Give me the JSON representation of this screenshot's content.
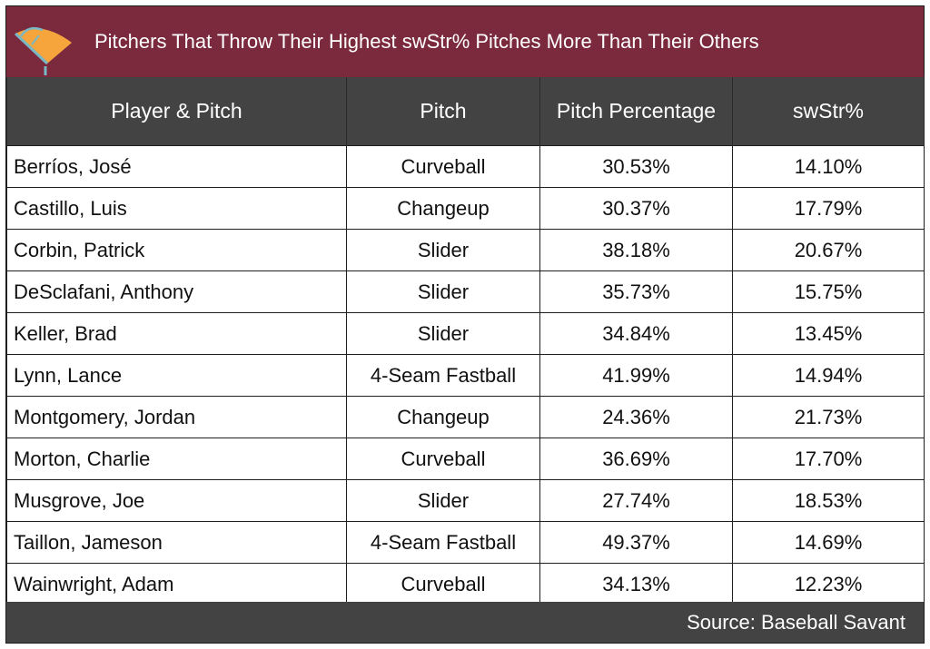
{
  "title": "Pitchers That Throw Their Highest swStr% Pitches More Than Their Others",
  "logo": {
    "icon": "baseball-field-icon",
    "colors": [
      "#f6a53c",
      "#79b7c5"
    ]
  },
  "columns": [
    "Player & Pitch",
    "Pitch",
    "Pitch Percentage",
    "swStr%"
  ],
  "rows": [
    {
      "player": "Berríos, José",
      "pitch": "Curveball",
      "pct": "30.53%",
      "swstr": "14.10%"
    },
    {
      "player": "Castillo, Luis",
      "pitch": "Changeup",
      "pct": "30.37%",
      "swstr": "17.79%"
    },
    {
      "player": "Corbin, Patrick",
      "pitch": "Slider",
      "pct": "38.18%",
      "swstr": "20.67%"
    },
    {
      "player": "DeSclafani, Anthony",
      "pitch": "Slider",
      "pct": "35.73%",
      "swstr": "15.75%"
    },
    {
      "player": "Keller, Brad",
      "pitch": "Slider",
      "pct": "34.84%",
      "swstr": "13.45%"
    },
    {
      "player": "Lynn, Lance",
      "pitch": "4-Seam Fastball",
      "pct": "41.99%",
      "swstr": "14.94%"
    },
    {
      "player": "Montgomery, Jordan",
      "pitch": "Changeup",
      "pct": "24.36%",
      "swstr": "21.73%"
    },
    {
      "player": "Morton, Charlie",
      "pitch": "Curveball",
      "pct": "36.69%",
      "swstr": "17.70%"
    },
    {
      "player": "Musgrove, Joe",
      "pitch": "Slider",
      "pct": "27.74%",
      "swstr": "18.53%"
    },
    {
      "player": "Taillon, Jameson",
      "pitch": "4-Seam Fastball",
      "pct": "49.37%",
      "swstr": "14.69%"
    },
    {
      "player": "Wainwright, Adam",
      "pitch": "Curveball",
      "pct": "34.13%",
      "swstr": "12.23%"
    }
  ],
  "footer": "Source: Baseball Savant",
  "colors": {
    "title_bg": "#7b2a3d",
    "header_bg": "#434343",
    "footer_bg": "#434343"
  }
}
